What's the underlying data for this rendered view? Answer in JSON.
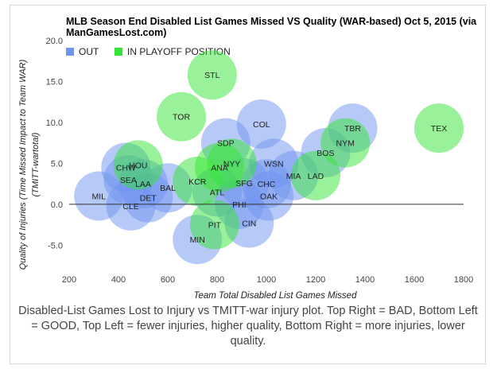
{
  "chart_data": {
    "type": "scatter",
    "title": "MLB Season End Disabled List Games Missed VS Quality (WAR-based) Oct 5, 2015 (via",
    "title_line2": "ManGamesLost.com)",
    "xlabel": "Team Total Disabled List Games Missed",
    "ylabel": "Quality of Injuries (Time Missed Impact to Team WAR)",
    "ylabel2": "(TMITT-wartotal)",
    "xlim": [
      200,
      1800
    ],
    "ylim": [
      -7.5,
      20
    ],
    "xticks": [
      "200",
      "400",
      "600",
      "800",
      "1000",
      "1200",
      "1400",
      "1600",
      "1800"
    ],
    "yticks": [
      "20.0",
      "15.0",
      "10.0",
      "5.0",
      "0.0",
      "-5.0"
    ],
    "grid": false,
    "legend_position": "top-left",
    "colors": {
      "OUT": "#6f94f0",
      "IN PLAYOFF POSITION": "#33e633"
    },
    "legend": [
      {
        "label": "OUT",
        "color": "#6f94f0"
      },
      {
        "label": "IN PLAYOFF POSITION",
        "color": "#33e633"
      }
    ],
    "series": [
      {
        "name": "OUT",
        "points": [
          {
            "team": "MIL",
            "x": 320,
            "y": 1.0
          },
          {
            "team": "CLE",
            "x": 450,
            "y": -0.2
          },
          {
            "team": "SEA",
            "x": 440,
            "y": 3.0
          },
          {
            "team": "CHW",
            "x": 430,
            "y": 4.5
          },
          {
            "team": "LAA",
            "x": 500,
            "y": 2.5
          },
          {
            "team": "DET",
            "x": 520,
            "y": 0.8
          },
          {
            "team": "BAL",
            "x": 600,
            "y": 2.0
          },
          {
            "team": "MIN",
            "x": 720,
            "y": -4.3
          },
          {
            "team": "SDP",
            "x": 835,
            "y": 7.5
          },
          {
            "team": "COL",
            "x": 980,
            "y": 9.8
          },
          {
            "team": "ATL",
            "x": 800,
            "y": 1.5
          },
          {
            "team": "PHI",
            "x": 890,
            "y": 0.0
          },
          {
            "team": "SFG",
            "x": 910,
            "y": 2.6
          },
          {
            "team": "CIN",
            "x": 930,
            "y": -2.3
          },
          {
            "team": "WSN",
            "x": 1030,
            "y": 5.0
          },
          {
            "team": "CHC",
            "x": 1000,
            "y": 2.5
          },
          {
            "team": "OAK",
            "x": 1010,
            "y": 1.0
          },
          {
            "team": "MIA",
            "x": 1110,
            "y": 3.5
          },
          {
            "team": "BOS",
            "x": 1240,
            "y": 6.3
          },
          {
            "team": "TBR",
            "x": 1350,
            "y": 9.3
          }
        ]
      },
      {
        "name": "IN PLAYOFF POSITION",
        "points": [
          {
            "team": "HOU",
            "x": 480,
            "y": 4.8
          },
          {
            "team": "TOR",
            "x": 655,
            "y": 10.7
          },
          {
            "team": "STL",
            "x": 780,
            "y": 15.8
          },
          {
            "team": "KCR",
            "x": 720,
            "y": 2.8
          },
          {
            "team": "PIT",
            "x": 790,
            "y": -2.5
          },
          {
            "team": "ANA",
            "x": 810,
            "y": 4.5
          },
          {
            "team": "NYM_NL",
            "x": 860,
            "y": 5.0
          },
          {
            "team": "LAD",
            "x": 1200,
            "y": 3.5
          },
          {
            "team": "NYM",
            "x": 1320,
            "y": 7.5
          },
          {
            "team": "TEX",
            "x": 1700,
            "y": 9.3
          }
        ]
      }
    ]
  },
  "labels": {
    "MIL": "MIL",
    "CLE": "CLE",
    "SEA": "SEA",
    "CHW": "CHW",
    "LAA": "LAA",
    "DET": "DET",
    "BAL": "BAL",
    "MIN": "MIN",
    "SDP": "SDP",
    "COL": "COL",
    "ATL": "ATL",
    "PHI": "PHI",
    "SFG": "SFG",
    "CIN": "CIN",
    "WSN": "WSN",
    "CHC": "CHC",
    "OAK": "OAK",
    "MIA": "MIA",
    "BOS": "BOS",
    "TBR": "TBR",
    "HOU": "HOU",
    "TOR": "TOR",
    "STL": "STL",
    "KCR": "KCR",
    "PIT": "PIT",
    "ANA": "ANA",
    "NYM_NL": "NYY",
    "LAD": "LAD",
    "NYM": "NYM",
    "TEX": "TEX"
  },
  "caption": "Disabled-List Games Lost to Injury vs TMITT-war injury plot. Top Right = BAD, Bottom Left = GOOD, Top Left = fewer injuries, higher quality, Bottom Right = more injuries, lower quality."
}
